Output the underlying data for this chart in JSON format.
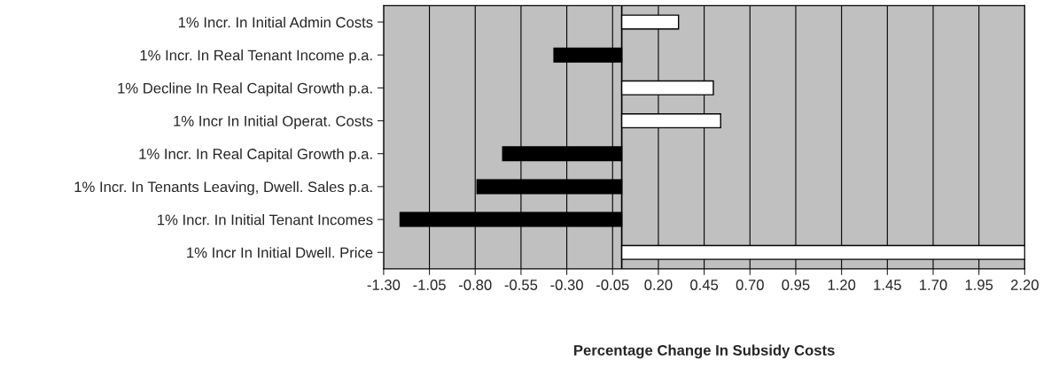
{
  "chart_data": {
    "type": "bar",
    "orientation": "horizontal",
    "xlabel": "Percentage Change In Subsidy Costs",
    "categories": [
      "1% Incr. In Initial Admin Costs",
      "1% Incr. In Real Tenant Income p.a.",
      "1% Decline In Real Capital Growth p.a.",
      "1% Incr In Initial Operat. Costs",
      "1% Incr. In Real Capital Growth p.a.",
      "1% Incr. In Tenants Leaving, Dwell. Sales p.a.",
      "1% Incr. In Initial Tenant Incomes",
      "1% Incr In Initial Dwell. Price"
    ],
    "values": [
      0.31,
      -0.37,
      0.5,
      0.54,
      -0.65,
      -0.79,
      -1.21,
      2.2
    ],
    "colors": [
      "#ffffff",
      "#000000",
      "#ffffff",
      "#ffffff",
      "#000000",
      "#000000",
      "#000000",
      "#ffffff"
    ],
    "xlim": [
      -1.3,
      2.2
    ],
    "xticks": [
      {
        "value": -1.3,
        "label": "-1.30"
      },
      {
        "value": -1.05,
        "label": "-1.05"
      },
      {
        "value": -0.8,
        "label": "-0.80"
      },
      {
        "value": -0.55,
        "label": "-0.55"
      },
      {
        "value": -0.3,
        "label": "-0.30"
      },
      {
        "value": -0.05,
        "label": "-0.05"
      },
      {
        "value": 0.2,
        "label": "0.20"
      },
      {
        "value": 0.45,
        "label": "0.45"
      },
      {
        "value": 0.7,
        "label": "0.70"
      },
      {
        "value": 0.95,
        "label": "0.95"
      },
      {
        "value": 1.2,
        "label": "1.20"
      },
      {
        "value": 1.45,
        "label": "1.45"
      },
      {
        "value": 1.7,
        "label": "1.70"
      },
      {
        "value": 1.95,
        "label": "1.95"
      },
      {
        "value": 2.2,
        "label": "2.20"
      }
    ],
    "ref_lines": [
      {
        "axis": "x",
        "value": 0,
        "color": "#000000"
      }
    ],
    "grid": "x",
    "legend": false
  }
}
